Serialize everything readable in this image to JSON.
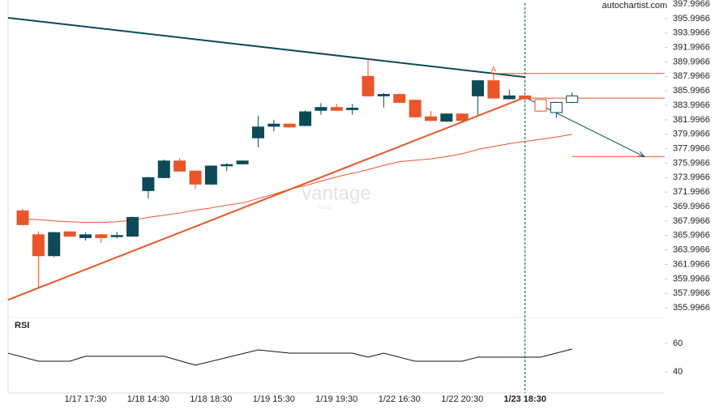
{
  "chart_data": {
    "type": "candlestick",
    "source": "autochartist.com",
    "watermark": "vantage",
    "watermark_sub": "PLUS",
    "up_color": "#0d4a57",
    "down_color": "#e8562a",
    "hollow_start": 33,
    "categories": [
      null,
      null,
      null,
      null,
      "1/17 17:30",
      null,
      null,
      null,
      "1/18 14:30",
      null,
      null,
      null,
      "1/18 18:30",
      null,
      null,
      null,
      "1/19 15:30",
      null,
      null,
      null,
      "1/19 19:30",
      null,
      null,
      null,
      "1/22 16:30",
      null,
      null,
      null,
      "1/22 20:30",
      null,
      null,
      null,
      "1/23 18:30",
      null,
      null,
      null
    ],
    "highlight_category": 32,
    "open": [
      369.4,
      366.1,
      363.2,
      366.5,
      365.7,
      366.1,
      365.9,
      365.9,
      372.2,
      374.0,
      376.3,
      374.9,
      373.1,
      375.7,
      375.9,
      379.5,
      381.1,
      381.4,
      381.2,
      383.3,
      383.7,
      383.4,
      388.0,
      385.3,
      385.5,
      384.7,
      382.4,
      381.8,
      382.8,
      385.3,
      387.4,
      384.9,
      385.3,
      384.8,
      383.0,
      384.4
    ],
    "high": [
      369.7,
      366.6,
      366.5,
      366.6,
      366.4,
      366.2,
      366.5,
      368.6,
      374.1,
      376.5,
      376.7,
      375.0,
      375.7,
      376.0,
      376.4,
      382.5,
      382.0,
      381.5,
      383.3,
      384.3,
      384.2,
      384.2,
      390.4,
      385.7,
      385.6,
      384.8,
      383.2,
      382.9,
      382.9,
      387.5,
      388.4,
      386.2,
      385.4,
      384.9,
      384.5,
      385.8
    ],
    "low": [
      367.4,
      358.8,
      363.0,
      365.8,
      365.3,
      365.0,
      365.6,
      365.8,
      371.1,
      373.9,
      374.8,
      372.4,
      373.0,
      374.9,
      375.8,
      378.2,
      380.4,
      380.9,
      381.1,
      382.7,
      383.2,
      382.7,
      385.2,
      383.7,
      384.3,
      382.3,
      381.8,
      381.7,
      381.6,
      382.7,
      384.9,
      384.8,
      384.5,
      383.1,
      382.3,
      384.3
    ],
    "close": [
      367.5,
      363.2,
      366.4,
      365.9,
      366.1,
      365.7,
      366.0,
      368.5,
      374.0,
      376.3,
      374.9,
      373.1,
      375.6,
      375.8,
      376.3,
      381.0,
      381.4,
      381.0,
      383.1,
      383.7,
      383.3,
      383.6,
      385.3,
      385.5,
      384.4,
      382.4,
      381.9,
      382.8,
      381.9,
      387.4,
      385.0,
      385.3,
      384.9,
      383.2,
      384.4,
      385.3
    ],
    "ma": {
      "color": "#e8562a",
      "values": [
        368.3,
        368.2,
        368.0,
        367.9,
        367.8,
        367.8,
        367.9,
        368.1,
        368.5,
        368.8,
        369.1,
        369.5,
        369.8,
        370.2,
        370.5,
        371.1,
        371.7,
        372.4,
        372.9,
        373.5,
        374.1,
        374.6,
        375.1,
        375.7,
        376.2,
        376.4,
        376.6,
        376.9,
        377.3,
        377.9,
        378.3,
        378.7,
        379.0,
        379.3,
        379.6,
        380.0
      ]
    },
    "lines": [
      {
        "color": "#0d4a57",
        "x": [
          -0.93,
          32
        ],
        "y": [
          396.1,
          387.9
        ]
      },
      {
        "color": "#e8562a",
        "x": [
          -0.93,
          32
        ],
        "y": [
          357.1,
          385.1
        ]
      },
      {
        "color": "#e8562a",
        "x": [
          29.8,
          40.9
        ],
        "y": [
          388.4,
          388.4
        ]
      },
      {
        "color": "#e8562a",
        "x": [
          32,
          40.9
        ],
        "y": [
          385.0,
          385.0
        ]
      },
      {
        "color": "#e8562a",
        "x": [
          35,
          40.9
        ],
        "y": [
          376.9,
          376.9
        ]
      }
    ],
    "arrow": {
      "color": "#0d4a57",
      "x": [
        32,
        39.6
      ],
      "y": [
        385.1,
        376.9
      ]
    },
    "annotation": {
      "text": "A",
      "x": 30,
      "y": 388.9
    },
    "xlim": [
      -0.93,
      40.9
    ],
    "ylim": [
      354.66,
      398.56
    ],
    "yticks": [
      397.9966,
      395.9966,
      393.9966,
      391.9966,
      389.9966,
      387.9966,
      385.9966,
      383.9966,
      381.9966,
      379.9966,
      377.9966,
      375.9966,
      373.9966,
      371.9966,
      369.9966,
      367.9966,
      365.9966,
      363.9966,
      361.9966,
      359.9966,
      357.9966,
      355.9966
    ],
    "rsi": {
      "title": "RSI",
      "color": "#111111",
      "ylim": [
        25.1,
        78.3
      ],
      "yticks": [
        40,
        60
      ],
      "x": [
        -0.93,
        1,
        3,
        4,
        9,
        11,
        15,
        17,
        21,
        22,
        23,
        25,
        28,
        29,
        33,
        35
      ],
      "values": [
        53.1,
        47.4,
        47.4,
        50.9,
        50.9,
        44.6,
        55.4,
        53.1,
        53.1,
        50.3,
        53.1,
        47.4,
        47.4,
        50.3,
        50.3,
        56.0
      ]
    }
  }
}
